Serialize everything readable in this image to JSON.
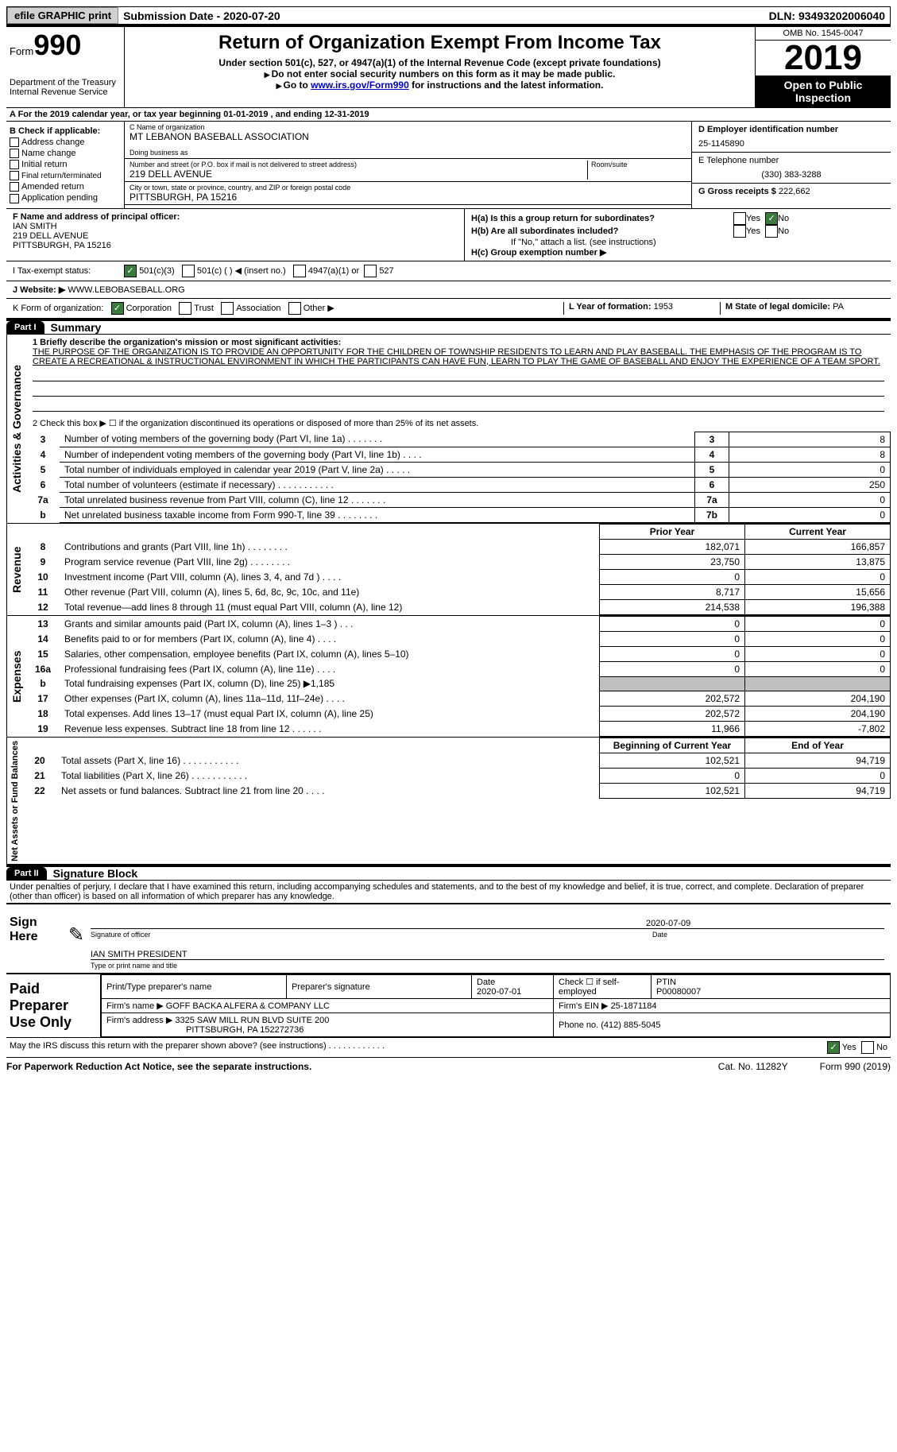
{
  "topbar": {
    "efile_btn": "efile GRAPHIC print",
    "submission_label": "Submission Date - 2020-07-20",
    "dln": "DLN: 93493202006040"
  },
  "header": {
    "form_word": "Form",
    "form_num": "990",
    "dept1": "Department of the Treasury",
    "dept2": "Internal Revenue Service",
    "title": "Return of Organization Exempt From Income Tax",
    "subtitle": "Under section 501(c), 527, or 4947(a)(1) of the Internal Revenue Code (except private foundations)",
    "note1": "Do not enter social security numbers on this form as it may be made public.",
    "note2_pre": "Go to ",
    "note2_link": "www.irs.gov/Form990",
    "note2_post": " for instructions and the latest information.",
    "omb": "OMB No. 1545-0047",
    "year": "2019",
    "open": "Open to Public Inspection"
  },
  "section_a": {
    "text": "A For the 2019 calendar year, or tax year beginning 01-01-2019    , and ending 12-31-2019"
  },
  "section_b": {
    "label": "B Check if applicable:",
    "items": [
      "Address change",
      "Name change",
      "Initial return",
      "Final return/terminated",
      "Amended return",
      "Application pending"
    ]
  },
  "section_c": {
    "name_label": "C Name of organization",
    "name_val": "MT LEBANON BASEBALL ASSOCIATION",
    "dba_label": "Doing business as",
    "dba_val": "",
    "street_label": "Number and street (or P.O. box if mail is not delivered to street address)",
    "room_label": "Room/suite",
    "street_val": "219 DELL AVENUE",
    "city_label": "City or town, state or province, country, and ZIP or foreign postal code",
    "city_val": "PITTSBURGH, PA   15216"
  },
  "section_d": {
    "label": "D Employer identification number",
    "val": "25-1145890"
  },
  "section_e": {
    "label": "E Telephone number",
    "val": "(330) 383-3288"
  },
  "section_g": {
    "label": "G Gross receipts $",
    "val": "222,662"
  },
  "section_f": {
    "label": "F Name and address of principal officer:",
    "name": "IAN SMITH",
    "street": "219 DELL AVENUE",
    "city": "PITTSBURGH, PA  15216"
  },
  "section_h": {
    "ha_label": "H(a)  Is this a group return for subordinates?",
    "ha_yes": "Yes",
    "ha_no": "No",
    "hb_label": "H(b)  Are all subordinates included?",
    "hb_yes": "Yes",
    "hb_no": "No",
    "hb_note": "If \"No,\" attach a list. (see instructions)",
    "hc_label": "H(c)  Group exemption number ▶"
  },
  "tax_status": {
    "label": "I   Tax-exempt status:",
    "o1": "501(c)(3)",
    "o2": "501(c) (   ) ◀ (insert no.)",
    "o3": "4947(a)(1) or",
    "o4": "527"
  },
  "section_j": {
    "label": "J    Website: ▶",
    "val": "WWW.LEBOBASEBALL.ORG"
  },
  "section_k": {
    "label": "K Form of organization:",
    "o1": "Corporation",
    "o2": "Trust",
    "o3": "Association",
    "o4": "Other ▶"
  },
  "section_l": {
    "label": "L Year of formation:",
    "val": "1953"
  },
  "section_m": {
    "label": "M State of legal domicile:",
    "val": "PA"
  },
  "part1": {
    "part": "Part I",
    "title": "Summary",
    "line1_label": "1   Briefly describe the organization's mission or most significant activities:",
    "mission": "THE PURPOSE OF THE ORGANIZATION IS TO PROVIDE AN OPPORTUNITY FOR THE CHILDREN OF TOWNSHIP RESIDENTS TO LEARN AND PLAY BASEBALL. THE EMPHASIS OF THE PROGRAM IS TO CREATE A RECREATIONAL & INSTRUCTIONAL ENVIRONMENT IN WHICH THE PARTICIPANTS CAN HAVE FUN, LEARN TO PLAY THE GAME OF BASEBALL AND ENJOY THE EXPERIENCE OF A TEAM SPORT.",
    "line2": "2   Check this box ▶ ☐  if the organization discontinued its operations or disposed of more than 25% of its net assets.",
    "governance_rows": [
      {
        "n": "3",
        "desc": "Number of voting members of the governing body (Part VI, line 1a)   .    .    .    .    .    .    .",
        "box": "3",
        "val": "8"
      },
      {
        "n": "4",
        "desc": "Number of independent voting members of the governing body (Part VI, line 1b)   .    .    .    .",
        "box": "4",
        "val": "8"
      },
      {
        "n": "5",
        "desc": "Total number of individuals employed in calendar year 2019 (Part V, line 2a)   .    .    .    .    .",
        "box": "5",
        "val": "0"
      },
      {
        "n": "6",
        "desc": "Total number of volunteers (estimate if necessary)   .    .    .    .    .    .    .    .    .    .    .",
        "box": "6",
        "val": "250"
      },
      {
        "n": "7a",
        "desc": "Total unrelated business revenue from Part VIII, column (C), line 12   .    .    .    .    .    .    .",
        "box": "7a",
        "val": "0"
      },
      {
        "n": "b",
        "desc": "Net unrelated business taxable income from Form 990-T, line 39   .    .    .    .    .    .    .    .",
        "box": "7b",
        "val": "0"
      }
    ],
    "hdr_prior": "Prior Year",
    "hdr_current": "Current Year",
    "revenue_rows": [
      {
        "n": "8",
        "desc": "Contributions and grants (Part VIII, line 1h)   .    .    .    .    .    .    .    .",
        "prior": "182,071",
        "cur": "166,857"
      },
      {
        "n": "9",
        "desc": "Program service revenue (Part VIII, line 2g)   .    .    .    .    .    .    .    .",
        "prior": "23,750",
        "cur": "13,875"
      },
      {
        "n": "10",
        "desc": "Investment income (Part VIII, column (A), lines 3, 4, and 7d )   .    .    .    .",
        "prior": "0",
        "cur": "0"
      },
      {
        "n": "11",
        "desc": "Other revenue (Part VIII, column (A), lines 5, 6d, 8c, 9c, 10c, and 11e)",
        "prior": "8,717",
        "cur": "15,656"
      },
      {
        "n": "12",
        "desc": "Total revenue—add lines 8 through 11 (must equal Part VIII, column (A), line 12)",
        "prior": "214,538",
        "cur": "196,388"
      }
    ],
    "expense_rows": [
      {
        "n": "13",
        "desc": "Grants and similar amounts paid (Part IX, column (A), lines 1–3 )   .    .    .",
        "prior": "0",
        "cur": "0"
      },
      {
        "n": "14",
        "desc": "Benefits paid to or for members (Part IX, column (A), line 4)   .    .    .    .",
        "prior": "0",
        "cur": "0"
      },
      {
        "n": "15",
        "desc": "Salaries, other compensation, employee benefits (Part IX, column (A), lines 5–10)",
        "prior": "0",
        "cur": "0"
      },
      {
        "n": "16a",
        "desc": "Professional fundraising fees (Part IX, column (A), line 11e)   .    .    .    .",
        "prior": "0",
        "cur": "0"
      },
      {
        "n": "b",
        "desc": "Total fundraising expenses (Part IX, column (D), line 25) ▶1,185",
        "prior": "shade",
        "cur": "shade"
      },
      {
        "n": "17",
        "desc": "Other expenses (Part IX, column (A), lines 11a–11d, 11f–24e)   .    .    .    .",
        "prior": "202,572",
        "cur": "204,190"
      },
      {
        "n": "18",
        "desc": "Total expenses. Add lines 13–17 (must equal Part IX, column (A), line 25)",
        "prior": "202,572",
        "cur": "204,190"
      },
      {
        "n": "19",
        "desc": "Revenue less expenses. Subtract line 18 from line 12   .    .    .    .    .    .",
        "prior": "11,966",
        "cur": "-7,802"
      }
    ],
    "hdr_boy": "Beginning of Current Year",
    "hdr_eoy": "End of Year",
    "netassets_rows": [
      {
        "n": "20",
        "desc": "Total assets (Part X, line 16)   .    .    .    .    .    .    .    .    .    .    .",
        "prior": "102,521",
        "cur": "94,719"
      },
      {
        "n": "21",
        "desc": "Total liabilities (Part X, line 26)   .    .    .    .    .    .    .    .    .    .    .",
        "prior": "0",
        "cur": "0"
      },
      {
        "n": "22",
        "desc": "Net assets or fund balances. Subtract line 21 from line 20   .    .    .    .",
        "prior": "102,521",
        "cur": "94,719"
      }
    ],
    "side_gov": "Activities & Governance",
    "side_rev": "Revenue",
    "side_exp": "Expenses",
    "side_net": "Net Assets or Fund Balances"
  },
  "part2": {
    "part": "Part II",
    "title": "Signature Block",
    "declaration": "Under penalties of perjury, I declare that I have examined this return, including accompanying schedules and statements, and to the best of my knowledge and belief, it is true, correct, and complete. Declaration of preparer (other than officer) is based on all information of which preparer has any knowledge."
  },
  "sign": {
    "label": "Sign Here",
    "sig_label": "Signature of officer",
    "date_label": "Date",
    "date_val": "2020-07-09",
    "name_val": "IAN SMITH  PRESIDENT",
    "name_label": "Type or print name and title"
  },
  "paid": {
    "label": "Paid Preparer Use Only",
    "col1": "Print/Type preparer's name",
    "col2": "Preparer's signature",
    "col3_label": "Date",
    "col3_val": "2020-07-01",
    "col4": "Check ☐ if self-employed",
    "col5_label": "PTIN",
    "col5_val": "P00080007",
    "firm_name_label": "Firm's name     ▶",
    "firm_name_val": "GOFF BACKA ALFERA & COMPANY LLC",
    "firm_ein_label": "Firm's EIN ▶",
    "firm_ein_val": "25-1871184",
    "firm_addr_label": "Firm's address ▶",
    "firm_addr_val1": "3325 SAW MILL RUN BLVD SUITE 200",
    "firm_addr_val2": "PITTSBURGH, PA  152272736",
    "phone_label": "Phone no.",
    "phone_val": "(412) 885-5045"
  },
  "discuss": {
    "label": "May the IRS discuss this return with the preparer shown above? (see instructions)   .    .    .    .    .    .    .    .    .    .    .    .",
    "yes": "Yes",
    "no": "No"
  },
  "footer": {
    "left": "For Paperwork Reduction Act Notice, see the separate instructions.",
    "mid": "Cat. No. 11282Y",
    "right": "Form 990 (2019)"
  }
}
